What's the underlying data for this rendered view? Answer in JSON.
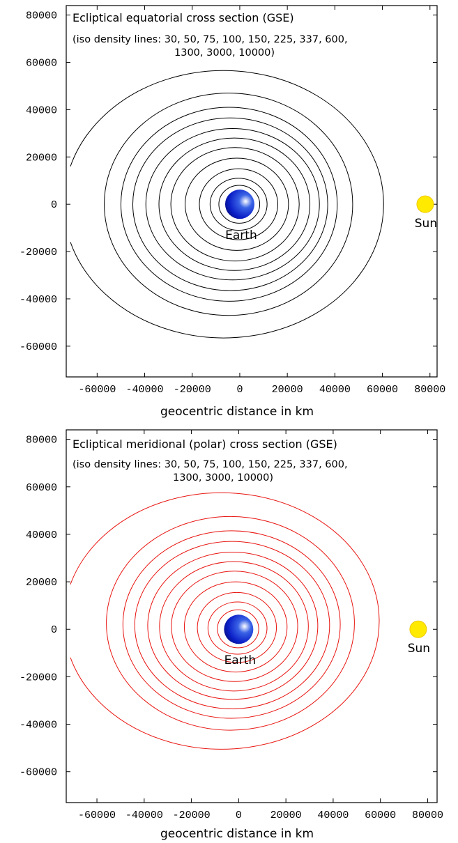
{
  "chart_data": [
    {
      "type": "contour",
      "title": "Ecliptical equatorial cross section (GSE)",
      "subtitle_line1": "(iso density lines: 30, 50, 75, 100, 150, 225, 337, 600,",
      "subtitle_line2": "1300, 3000, 10000)",
      "xlabel": "geocentric distance in km",
      "xlim": [
        -73000,
        83000
      ],
      "ylim": [
        -73000,
        84000
      ],
      "x_ticks": [
        -60000,
        -40000,
        -20000,
        0,
        20000,
        40000,
        60000,
        80000
      ],
      "x_tick_labels": [
        "-60000",
        "-40000",
        "-20000",
        "0",
        "20000",
        "40000",
        "60000",
        "80000"
      ],
      "y_ticks": [
        -60000,
        -40000,
        -20000,
        0,
        20000,
        40000,
        60000,
        80000
      ],
      "y_tick_labels": [
        "-60000",
        "-40000",
        "-20000",
        "0",
        "20000",
        "40000",
        "60000",
        "80000"
      ],
      "line_color": "#000000",
      "contour_levels": [
        30,
        50,
        75,
        100,
        150,
        225,
        337,
        600,
        1300,
        3000,
        10000
      ],
      "contours": [
        {
          "level": 30,
          "x_min": -74000,
          "x_max": 60500,
          "y_max": 56500,
          "y_min": -56500
        },
        {
          "level": 50,
          "x_min": -57000,
          "x_max": 47500,
          "y_max": 47000,
          "y_min": -47000
        },
        {
          "level": 75,
          "x_min": -50000,
          "x_max": 41000,
          "y_max": 41000,
          "y_min": -41000
        },
        {
          "level": 100,
          "x_min": -45000,
          "x_max": 37000,
          "y_max": 36500,
          "y_min": -36500
        },
        {
          "level": 150,
          "x_min": -39500,
          "x_max": 33500,
          "y_max": 32000,
          "y_min": -32000
        },
        {
          "level": 225,
          "x_min": -34000,
          "x_max": 29500,
          "y_max": 28000,
          "y_min": -28000
        },
        {
          "level": 337,
          "x_min": -29000,
          "x_max": 25000,
          "y_max": 24000,
          "y_min": -24000
        },
        {
          "level": 600,
          "x_min": -23000,
          "x_max": 20500,
          "y_max": 19500,
          "y_min": -19500
        },
        {
          "level": 1300,
          "x_min": -17000,
          "x_max": 16000,
          "y_max": 15000,
          "y_min": -15000
        },
        {
          "level": 3000,
          "x_min": -12500,
          "x_max": 11500,
          "y_max": 11000,
          "y_min": -11000
        },
        {
          "level": 10000,
          "x_min": -8800,
          "x_max": 8400,
          "y_max": 8000,
          "y_min": -8000
        }
      ],
      "earth": {
        "x": 0,
        "y": 0,
        "label": "Earth"
      },
      "sun": {
        "x": 78000,
        "y": 0,
        "label": "Sun"
      }
    },
    {
      "type": "contour",
      "title": "Ecliptical meridional (polar) cross section (GSE)",
      "subtitle_line1": "(iso density lines: 30, 50, 75, 100, 150, 225, 337, 600,",
      "subtitle_line2": "1300, 3000, 10000)",
      "xlabel": "geocentric distance in km",
      "xlim": [
        -73000,
        84000
      ],
      "ylim": [
        -73000,
        84000
      ],
      "x_ticks": [
        -60000,
        -40000,
        -20000,
        0,
        20000,
        40000,
        60000,
        80000
      ],
      "x_tick_labels": [
        "-60000",
        "-40000",
        "-20000",
        "0",
        "20000",
        "40000",
        "60000",
        "80000"
      ],
      "y_ticks": [
        -60000,
        -40000,
        -20000,
        0,
        20000,
        40000,
        60000,
        80000
      ],
      "y_tick_labels": [
        "-60000",
        "-40000",
        "-20000",
        "0",
        "20000",
        "40000",
        "60000",
        "80000"
      ],
      "line_color": "#e8140f",
      "contour_levels": [
        30,
        50,
        75,
        100,
        150,
        225,
        337,
        600,
        1300,
        3000,
        10000
      ],
      "contours": [
        {
          "level": 30,
          "x_min": -74000,
          "x_max": 59500,
          "y_max": 57500,
          "y_min": -50500
        },
        {
          "level": 50,
          "x_min": -56000,
          "x_max": 49000,
          "y_max": 47500,
          "y_min": -42500
        },
        {
          "level": 75,
          "x_min": -49000,
          "x_max": 43000,
          "y_max": 41500,
          "y_min": -37500
        },
        {
          "level": 100,
          "x_min": -44000,
          "x_max": 38500,
          "y_max": 37000,
          "y_min": -33500
        },
        {
          "level": 150,
          "x_min": -38500,
          "x_max": 33500,
          "y_max": 32500,
          "y_min": -29500
        },
        {
          "level": 225,
          "x_min": -33500,
          "x_max": 29500,
          "y_max": 28500,
          "y_min": -26000
        },
        {
          "level": 337,
          "x_min": -28500,
          "x_max": 25000,
          "y_max": 24500,
          "y_min": -22000
        },
        {
          "level": 600,
          "x_min": -23000,
          "x_max": 20500,
          "y_max": 20000,
          "y_min": -18000
        },
        {
          "level": 1300,
          "x_min": -17500,
          "x_max": 16000,
          "y_max": 15500,
          "y_min": -14000
        },
        {
          "level": 3000,
          "x_min": -13000,
          "x_max": 12000,
          "y_max": 11500,
          "y_min": -10500
        },
        {
          "level": 10000,
          "x_min": -9000,
          "x_max": 8500,
          "y_max": 8200,
          "y_min": -7800
        }
      ],
      "earth": {
        "x": 0,
        "y": 0,
        "label": "Earth"
      },
      "sun": {
        "x": 76000,
        "y": 0,
        "label": "Sun"
      }
    }
  ]
}
